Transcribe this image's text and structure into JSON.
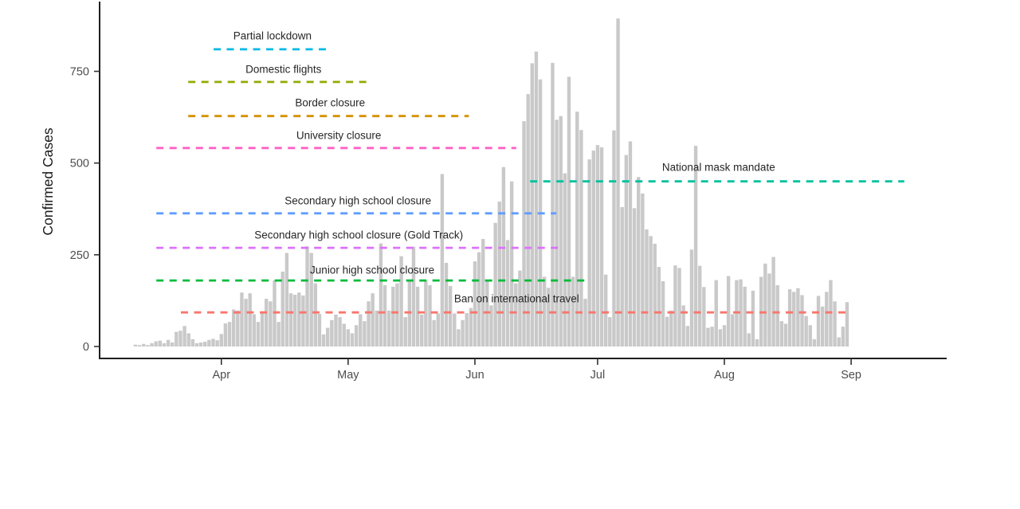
{
  "chart_data": {
    "type": "bar",
    "title": "",
    "xlabel": "",
    "ylabel": "Confirmed Cases",
    "y_ticks": [
      0,
      250,
      500,
      750
    ],
    "ylim": [
      0,
      938
    ],
    "grid": "off",
    "legend": "none",
    "bar_color": "#C9C9C9",
    "axis_color": "#1f1f1f",
    "tick_text_color": "#4d4d4d",
    "x_tick_labels": [
      "Apr",
      "May",
      "Jun",
      "Jul",
      "Aug",
      "Sep"
    ],
    "x_tick_indices": [
      21,
      52,
      83,
      113,
      144,
      175
    ],
    "values": [
      5,
      4,
      7,
      4,
      9,
      14,
      16,
      9,
      18,
      11,
      40,
      43,
      56,
      36,
      20,
      9,
      11,
      13,
      18,
      21,
      17,
      34,
      63,
      67,
      101,
      98,
      147,
      130,
      145,
      88,
      67,
      93,
      130,
      123,
      180,
      67,
      204,
      255,
      145,
      141,
      147,
      139,
      273,
      255,
      172,
      89,
      33,
      51,
      72,
      87,
      80,
      62,
      47,
      36,
      58,
      88,
      69,
      123,
      145,
      98,
      281,
      167,
      98,
      163,
      172,
      246,
      80,
      179,
      272,
      163,
      87,
      179,
      167,
      72,
      90,
      470,
      228,
      165,
      90,
      47,
      72,
      91,
      105,
      232,
      257,
      293,
      178,
      112,
      337,
      395,
      489,
      290,
      450,
      172,
      207,
      614,
      688,
      772,
      804,
      728,
      190,
      160,
      773,
      618,
      628,
      472,
      735,
      190,
      640,
      590,
      130,
      510,
      534,
      549,
      543,
      196,
      80,
      589,
      894,
      380,
      522,
      559,
      377,
      462,
      417,
      319,
      301,
      280,
      217,
      178,
      81,
      98,
      221,
      214,
      112,
      56,
      264,
      547,
      220,
      162,
      51,
      54,
      181,
      47,
      58,
      192,
      88,
      181,
      183,
      163,
      36,
      152,
      20,
      190,
      226,
      199,
      244,
      167,
      69,
      62,
      156,
      149,
      159,
      140,
      83,
      58,
      20,
      138,
      109,
      149,
      181,
      123,
      25,
      54,
      121
    ],
    "annotations": [
      {
        "label": "Partial lockdown",
        "color": "#00B9E3",
        "value": 810,
        "start_index": 19.1,
        "end_index": 47.4,
        "label_index": 33.5,
        "label_value": 847
      },
      {
        "label": "Domestic flights",
        "color": "#93AA00",
        "value": 721,
        "start_index": 12.9,
        "end_index": 57.9,
        "label_index": 36.2,
        "label_value": 755
      },
      {
        "label": "Border closure",
        "color": "#D39200",
        "value": 628,
        "start_index": 12.9,
        "end_index": 81.5,
        "label_index": 47.6,
        "label_value": 664
      },
      {
        "label": "University closure",
        "color": "#FF61C3",
        "value": 541,
        "start_index": 5.1,
        "end_index": 93.1,
        "label_index": 49.7,
        "label_value": 575
      },
      {
        "label": "National mask mandate",
        "color": "#00C19F",
        "value": 450,
        "start_index": 96.5,
        "end_index": 188.0,
        "label_index": 142.6,
        "label_value": 488
      },
      {
        "label": "Secondary high school closure",
        "color": "#619CFF",
        "value": 363,
        "start_index": 5.1,
        "end_index": 102.9,
        "label_index": 54.4,
        "label_value": 397
      },
      {
        "label": "Secondary high school closure (Gold Track)",
        "color": "#DB72FB",
        "value": 269,
        "start_index": 5.1,
        "end_index": 103.3,
        "label_index": 54.6,
        "label_value": 304
      },
      {
        "label": "Junior high school closure",
        "color": "#00BA38",
        "value": 180,
        "start_index": 5.1,
        "end_index": 109.9,
        "label_index": 57.9,
        "label_value": 208
      },
      {
        "label": "Ban on international travel",
        "color": "#F8766D",
        "value": 93,
        "start_index": 11.1,
        "end_index": 175.0,
        "label_index": 93.2,
        "label_value": 130
      }
    ]
  }
}
